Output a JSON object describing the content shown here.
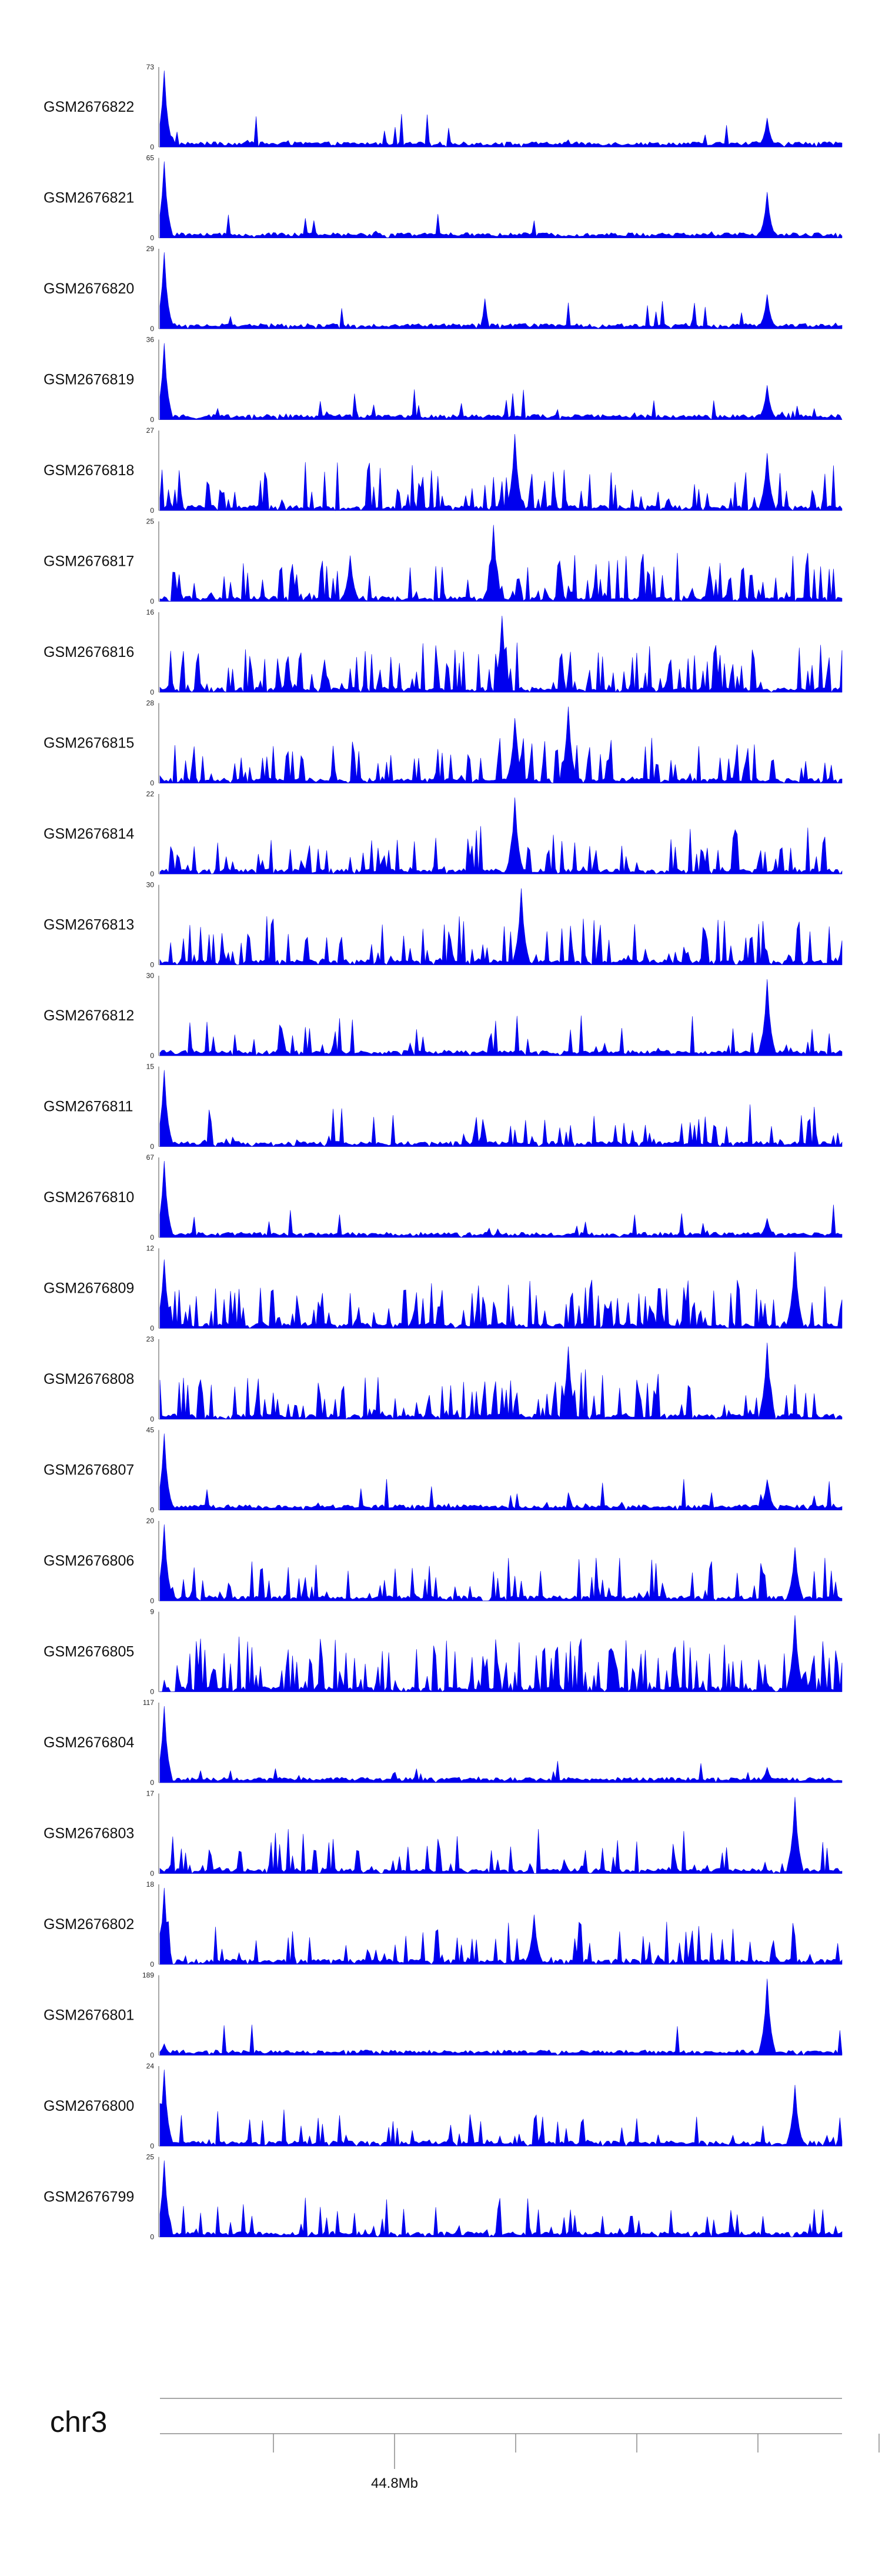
{
  "chart_data": {
    "type": "area",
    "track_color": "#0000EE",
    "axis_color": "#8a8a8a",
    "tracks": [
      {
        "name": "GSM2676822",
        "ymax": "73",
        "ymin": "0",
        "max_value": 73,
        "peak_hint": [
          [
            0.005,
            1.0
          ],
          [
            0.89,
            0.38
          ]
        ],
        "density": 0.15
      },
      {
        "name": "GSM2676821",
        "ymax": "65",
        "ymin": "0",
        "max_value": 65,
        "peak_hint": [
          [
            0.005,
            1.0
          ],
          [
            0.89,
            0.6
          ]
        ],
        "density": 0.15
      },
      {
        "name": "GSM2676820",
        "ymax": "29",
        "ymin": "0",
        "max_value": 29,
        "peak_hint": [
          [
            0.005,
            1.0
          ],
          [
            0.89,
            0.45
          ]
        ],
        "density": 0.25
      },
      {
        "name": "GSM2676819",
        "ymax": "36",
        "ymin": "0",
        "max_value": 36,
        "peak_hint": [
          [
            0.005,
            1.0
          ],
          [
            0.89,
            0.45
          ]
        ],
        "density": 0.2
      },
      {
        "name": "GSM2676818",
        "ymax": "27",
        "ymin": "0",
        "max_value": 27,
        "peak_hint": [
          [
            0.52,
            1.0
          ],
          [
            0.89,
            0.75
          ]
        ],
        "density": 0.7
      },
      {
        "name": "GSM2676817",
        "ymax": "25",
        "ymin": "0",
        "max_value": 25,
        "peak_hint": [
          [
            0.49,
            1.0
          ],
          [
            0.28,
            0.6
          ]
        ],
        "density": 0.7
      },
      {
        "name": "GSM2676816",
        "ymax": "16",
        "ymin": "0",
        "max_value": 16,
        "peak_hint": [
          [
            0.5,
            1.0
          ]
        ],
        "density": 0.75
      },
      {
        "name": "GSM2676815",
        "ymax": "28",
        "ymin": "0",
        "max_value": 28,
        "peak_hint": [
          [
            0.6,
            1.0
          ],
          [
            0.52,
            0.85
          ]
        ],
        "density": 0.65
      },
      {
        "name": "GSM2676814",
        "ymax": "22",
        "ymin": "0",
        "max_value": 22,
        "peak_hint": [
          [
            0.52,
            1.0
          ]
        ],
        "density": 0.7
      },
      {
        "name": "GSM2676813",
        "ymax": "30",
        "ymin": "0",
        "max_value": 30,
        "peak_hint": [
          [
            0.53,
            1.0
          ]
        ],
        "density": 0.7
      },
      {
        "name": "GSM2676812",
        "ymax": "30",
        "ymin": "0",
        "max_value": 30,
        "peak_hint": [
          [
            0.89,
            1.0
          ]
        ],
        "density": 0.4
      },
      {
        "name": "GSM2676811",
        "ymax": "15",
        "ymin": "0",
        "max_value": 15,
        "peak_hint": [
          [
            0.005,
            1.0
          ]
        ],
        "density": 0.5
      },
      {
        "name": "GSM2676810",
        "ymax": "67",
        "ymin": "0",
        "max_value": 67,
        "peak_hint": [
          [
            0.005,
            1.0
          ],
          [
            0.89,
            0.25
          ]
        ],
        "density": 0.12
      },
      {
        "name": "GSM2676809",
        "ymax": "12",
        "ymin": "0",
        "max_value": 12,
        "peak_hint": [
          [
            0.93,
            1.0
          ],
          [
            0.005,
            0.9
          ]
        ],
        "density": 0.75
      },
      {
        "name": "GSM2676808",
        "ymax": "23",
        "ymin": "0",
        "max_value": 23,
        "peak_hint": [
          [
            0.89,
            1.0
          ],
          [
            0.6,
            0.95
          ]
        ],
        "density": 0.75
      },
      {
        "name": "GSM2676807",
        "ymax": "45",
        "ymin": "0",
        "max_value": 45,
        "peak_hint": [
          [
            0.005,
            1.0
          ],
          [
            0.89,
            0.4
          ]
        ],
        "density": 0.18
      },
      {
        "name": "GSM2676806",
        "ymax": "20",
        "ymin": "0",
        "max_value": 20,
        "peak_hint": [
          [
            0.005,
            1.0
          ],
          [
            0.93,
            0.7
          ]
        ],
        "density": 0.5
      },
      {
        "name": "GSM2676805",
        "ymax": "9",
        "ymin": "0",
        "max_value": 9,
        "peak_hint": [
          [
            0.93,
            1.0
          ]
        ],
        "density": 0.95
      },
      {
        "name": "GSM2676804",
        "ymax": "117",
        "ymin": "0",
        "max_value": 117,
        "peak_hint": [
          [
            0.005,
            1.0
          ],
          [
            0.89,
            0.2
          ]
        ],
        "density": 0.1
      },
      {
        "name": "GSM2676803",
        "ymax": "17",
        "ymin": "0",
        "max_value": 17,
        "peak_hint": [
          [
            0.93,
            1.0
          ]
        ],
        "density": 0.55
      },
      {
        "name": "GSM2676802",
        "ymax": "18",
        "ymin": "0",
        "max_value": 18,
        "peak_hint": [
          [
            0.005,
            1.0
          ],
          [
            0.55,
            0.65
          ]
        ],
        "density": 0.55
      },
      {
        "name": "GSM2676801",
        "ymax": "189",
        "ymin": "0",
        "max_value": 189,
        "peak_hint": [
          [
            0.89,
            1.0
          ],
          [
            0.005,
            0.15
          ]
        ],
        "density": 0.05
      },
      {
        "name": "GSM2676800",
        "ymax": "24",
        "ymin": "0",
        "max_value": 24,
        "peak_hint": [
          [
            0.005,
            1.0
          ],
          [
            0.93,
            0.8
          ]
        ],
        "density": 0.5
      },
      {
        "name": "GSM2676799",
        "ymax": "25",
        "ymin": "0",
        "max_value": 25,
        "peak_hint": [
          [
            0.005,
            1.0
          ]
        ],
        "density": 0.45
      }
    ],
    "genome_axis": {
      "chromosome": "chr3",
      "tick_count": 6,
      "labeled_tick_index": 1,
      "labeled_tick_text": "44.8Mb"
    }
  }
}
